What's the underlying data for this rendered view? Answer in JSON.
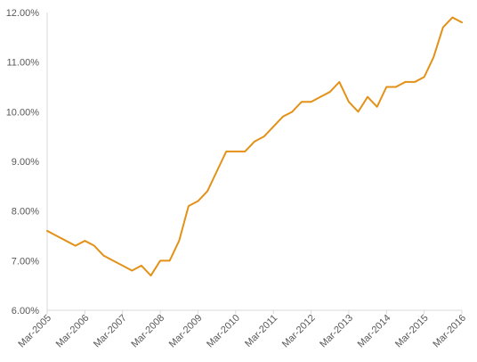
{
  "chart_data": {
    "type": "line",
    "title": "",
    "xlabel": "",
    "ylabel": "",
    "ylim": [
      0.06,
      0.12
    ],
    "y_ticks": [
      0.06,
      0.07,
      0.08,
      0.09,
      0.1,
      0.11,
      0.12
    ],
    "y_tick_labels": [
      "6.00%",
      "7.00%",
      "8.00%",
      "9.00%",
      "10.00%",
      "11.00%",
      "12.00%"
    ],
    "x_tick_labels": [
      "Mar-2005",
      "Mar-2006",
      "Mar-2007",
      "Mar-2008",
      "Mar-2009",
      "Mar-2010",
      "Mar-2011",
      "Mar-2012",
      "Mar-2013",
      "Mar-2014",
      "Mar-2015",
      "Mar-2016"
    ],
    "grid": false,
    "legend": "none",
    "line_color": "#E39117",
    "axis_color": "#D9D9D9",
    "x": [
      "Mar-2005",
      "Jun-2005",
      "Sep-2005",
      "Dec-2005",
      "Mar-2006",
      "Jun-2006",
      "Sep-2006",
      "Dec-2006",
      "Mar-2007",
      "Jun-2007",
      "Sep-2007",
      "Dec-2007",
      "Mar-2008",
      "Jun-2008",
      "Sep-2008",
      "Dec-2008",
      "Mar-2009",
      "Jun-2009",
      "Sep-2009",
      "Dec-2009",
      "Mar-2010",
      "Jun-2010",
      "Sep-2010",
      "Dec-2010",
      "Mar-2011",
      "Jun-2011",
      "Sep-2011",
      "Dec-2011",
      "Mar-2012",
      "Jun-2012",
      "Sep-2012",
      "Dec-2012",
      "Mar-2013",
      "Jun-2013",
      "Sep-2013",
      "Dec-2013",
      "Mar-2014",
      "Jun-2014",
      "Sep-2014",
      "Dec-2014",
      "Mar-2015",
      "Jun-2015",
      "Sep-2015",
      "Dec-2015",
      "Mar-2016"
    ],
    "series": [
      {
        "values": [
          0.076,
          0.075,
          0.074,
          0.073,
          0.074,
          0.073,
          0.071,
          0.07,
          0.069,
          0.068,
          0.069,
          0.067,
          0.07,
          0.07,
          0.074,
          0.081,
          0.082,
          0.084,
          0.088,
          0.092,
          0.092,
          0.092,
          0.094,
          0.095,
          0.097,
          0.099,
          0.1,
          0.102,
          0.102,
          0.103,
          0.104,
          0.106,
          0.102,
          0.1,
          0.103,
          0.101,
          0.105,
          0.105,
          0.106,
          0.106,
          0.107,
          0.111,
          0.117,
          0.119,
          0.118
        ]
      }
    ]
  }
}
